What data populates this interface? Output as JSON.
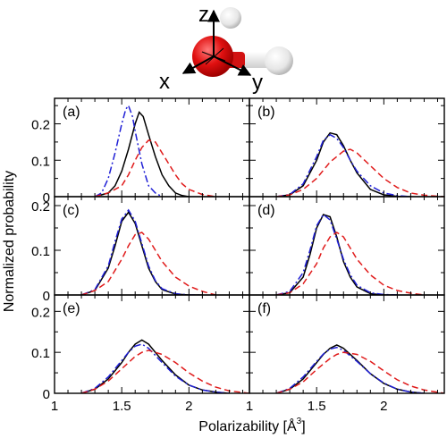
{
  "molecule": {
    "axis_labels": {
      "z": "z",
      "x": "x",
      "y": "y"
    }
  },
  "chart_data": {
    "type": "line",
    "xlabel": "Polarizability [Å³]",
    "xlabel_main": "Polarizability [Å",
    "xlabel_sup": "3",
    "xlabel_close": "]",
    "ylabel": "Normalized probability",
    "xlim": [
      1.0,
      2.45
    ],
    "x_ticks": [
      1,
      1.5,
      2
    ],
    "x_tick_labels": [
      "1",
      "1.5",
      "2"
    ],
    "x_minor_step": 0.1,
    "grid": false,
    "legend": "none",
    "series_styles": [
      {
        "color": "#000000",
        "dash": "solid"
      },
      {
        "color": "#1f1fd6",
        "dash": "dashdot"
      },
      {
        "color": "#e01b1b",
        "dash": "dashed"
      }
    ],
    "panels": [
      {
        "label": "(a)",
        "ylim": [
          0,
          0.27
        ],
        "y_ticks": [
          0,
          0.1,
          0.2
        ],
        "y_tick_labels": [
          "0",
          "0.1",
          "0.2"
        ],
        "series": [
          {
            "x": [
              1.3,
              1.4,
              1.45,
              1.5,
              1.55,
              1.6,
              1.63,
              1.66,
              1.7,
              1.75,
              1.8,
              1.85,
              1.9,
              1.95,
              2.0
            ],
            "y": [
              0.0,
              0.01,
              0.03,
              0.07,
              0.13,
              0.2,
              0.232,
              0.22,
              0.17,
              0.11,
              0.06,
              0.03,
              0.01,
              0.003,
              0.0
            ]
          },
          {
            "x": [
              1.3,
              1.35,
              1.4,
              1.45,
              1.5,
              1.53,
              1.55,
              1.58,
              1.6,
              1.65,
              1.7,
              1.75,
              1.8
            ],
            "y": [
              0.0,
              0.01,
              0.05,
              0.12,
              0.2,
              0.24,
              0.25,
              0.22,
              0.18,
              0.09,
              0.03,
              0.01,
              0.0
            ]
          },
          {
            "x": [
              1.3,
              1.4,
              1.5,
              1.55,
              1.6,
              1.65,
              1.7,
              1.75,
              1.8,
              1.85,
              1.9,
              1.95,
              2.0,
              2.1,
              2.2
            ],
            "y": [
              0.0,
              0.01,
              0.03,
              0.06,
              0.1,
              0.135,
              0.155,
              0.15,
              0.12,
              0.09,
              0.06,
              0.035,
              0.02,
              0.006,
              0.0
            ]
          }
        ]
      },
      {
        "label": "(b)",
        "ylim": [
          0,
          0.27
        ],
        "y_ticks": [
          0,
          0.1,
          0.2
        ],
        "y_tick_labels": [
          "0",
          "0.1",
          "0.2"
        ],
        "series": [
          {
            "x": [
              1.2,
              1.3,
              1.4,
              1.5,
              1.55,
              1.6,
              1.65,
              1.7,
              1.75,
              1.8,
              1.9,
              2.0,
              2.1,
              2.2
            ],
            "y": [
              0.0,
              0.005,
              0.03,
              0.1,
              0.15,
              0.175,
              0.17,
              0.14,
              0.1,
              0.065,
              0.02,
              0.005,
              0.001,
              0.0
            ]
          },
          {
            "x": [
              1.2,
              1.3,
              1.4,
              1.5,
              1.55,
              1.6,
              1.65,
              1.7,
              1.75,
              1.8,
              1.9,
              2.0,
              2.1,
              2.2
            ],
            "y": [
              0.0,
              0.006,
              0.035,
              0.11,
              0.155,
              0.17,
              0.16,
              0.135,
              0.1,
              0.07,
              0.03,
              0.01,
              0.003,
              0.0
            ]
          },
          {
            "x": [
              1.2,
              1.3,
              1.4,
              1.5,
              1.6,
              1.7,
              1.75,
              1.8,
              1.9,
              2.0,
              2.1,
              2.2,
              2.3,
              2.45
            ],
            "y": [
              0.0,
              0.005,
              0.02,
              0.05,
              0.095,
              0.125,
              0.13,
              0.12,
              0.085,
              0.05,
              0.025,
              0.01,
              0.004,
              0.0
            ]
          }
        ]
      },
      {
        "label": "(c)",
        "ylim": [
          0,
          0.22
        ],
        "y_ticks": [
          0,
          0.1,
          0.2
        ],
        "y_tick_labels": [
          "0",
          "0.1",
          "0.2"
        ],
        "series": [
          {
            "x": [
              1.2,
              1.3,
              1.4,
              1.45,
              1.5,
              1.55,
              1.6,
              1.65,
              1.7,
              1.75,
              1.8,
              1.9,
              2.0,
              2.1
            ],
            "y": [
              0.0,
              0.01,
              0.06,
              0.11,
              0.165,
              0.185,
              0.16,
              0.11,
              0.06,
              0.03,
              0.012,
              0.002,
              0.0,
              0.0
            ]
          },
          {
            "x": [
              1.2,
              1.3,
              1.4,
              1.45,
              1.5,
              1.55,
              1.6,
              1.65,
              1.7,
              1.75,
              1.8,
              1.9,
              2.0,
              2.1
            ],
            "y": [
              0.0,
              0.012,
              0.065,
              0.12,
              0.17,
              0.19,
              0.165,
              0.115,
              0.065,
              0.032,
              0.014,
              0.003,
              0.0,
              0.0
            ]
          },
          {
            "x": [
              1.2,
              1.3,
              1.4,
              1.5,
              1.55,
              1.6,
              1.65,
              1.7,
              1.75,
              1.8,
              1.9,
              2.0,
              2.1,
              2.2
            ],
            "y": [
              0.0,
              0.01,
              0.03,
              0.08,
              0.11,
              0.135,
              0.14,
              0.125,
              0.1,
              0.075,
              0.04,
              0.02,
              0.008,
              0.0
            ]
          }
        ]
      },
      {
        "label": "(d)",
        "ylim": [
          0,
          0.22
        ],
        "y_ticks": [
          0,
          0.1,
          0.2
        ],
        "y_tick_labels": [
          "0",
          "0.1",
          "0.2"
        ],
        "series": [
          {
            "x": [
              1.2,
              1.3,
              1.4,
              1.45,
              1.5,
              1.55,
              1.6,
              1.65,
              1.7,
              1.75,
              1.8,
              1.9,
              2.0,
              2.1
            ],
            "y": [
              0.0,
              0.005,
              0.04,
              0.09,
              0.15,
              0.18,
              0.175,
              0.13,
              0.075,
              0.04,
              0.018,
              0.003,
              0.0,
              0.0
            ]
          },
          {
            "x": [
              1.2,
              1.3,
              1.4,
              1.45,
              1.5,
              1.55,
              1.6,
              1.65,
              1.7,
              1.75,
              1.8,
              1.9,
              2.0,
              2.1
            ],
            "y": [
              0.0,
              0.008,
              0.05,
              0.1,
              0.155,
              0.18,
              0.168,
              0.125,
              0.08,
              0.045,
              0.022,
              0.005,
              0.001,
              0.0
            ]
          },
          {
            "x": [
              1.2,
              1.3,
              1.4,
              1.5,
              1.55,
              1.6,
              1.65,
              1.7,
              1.75,
              1.8,
              1.9,
              2.0,
              2.1,
              2.2,
              2.3
            ],
            "y": [
              0.0,
              0.005,
              0.025,
              0.07,
              0.105,
              0.13,
              0.14,
              0.13,
              0.105,
              0.08,
              0.045,
              0.022,
              0.01,
              0.004,
              0.0
            ]
          }
        ]
      },
      {
        "label": "(e)",
        "ylim": [
          0,
          0.24
        ],
        "y_ticks": [
          0,
          0.1,
          0.2
        ],
        "y_tick_labels": [
          "0",
          "0.1",
          "0.2"
        ],
        "series": [
          {
            "x": [
              1.2,
              1.3,
              1.4,
              1.5,
              1.55,
              1.6,
              1.65,
              1.7,
              1.8,
              1.9,
              2.0,
              2.1,
              2.2,
              2.3
            ],
            "y": [
              0.0,
              0.01,
              0.035,
              0.075,
              0.1,
              0.12,
              0.13,
              0.12,
              0.08,
              0.045,
              0.02,
              0.008,
              0.003,
              0.0
            ]
          },
          {
            "x": [
              1.2,
              1.3,
              1.4,
              1.5,
              1.55,
              1.6,
              1.65,
              1.7,
              1.8,
              1.9,
              2.0,
              2.1,
              2.2,
              2.3
            ],
            "y": [
              0.0,
              0.012,
              0.04,
              0.08,
              0.1,
              0.115,
              0.12,
              0.11,
              0.075,
              0.042,
              0.02,
              0.008,
              0.003,
              0.0
            ]
          },
          {
            "x": [
              1.2,
              1.3,
              1.4,
              1.5,
              1.6,
              1.65,
              1.7,
              1.8,
              1.9,
              2.0,
              2.1,
              2.2,
              2.3,
              2.45
            ],
            "y": [
              0.0,
              0.01,
              0.03,
              0.06,
              0.09,
              0.1,
              0.105,
              0.095,
              0.075,
              0.05,
              0.03,
              0.015,
              0.006,
              0.0
            ]
          }
        ]
      },
      {
        "label": "(f)",
        "ylim": [
          0,
          0.24
        ],
        "y_ticks": [
          0,
          0.1,
          0.2
        ],
        "y_tick_labels": [
          "0",
          "0.1",
          "0.2"
        ],
        "series": [
          {
            "x": [
              1.2,
              1.3,
              1.4,
              1.5,
              1.55,
              1.6,
              1.65,
              1.7,
              1.8,
              1.9,
              2.0,
              2.1,
              2.2,
              2.3
            ],
            "y": [
              0.0,
              0.01,
              0.035,
              0.075,
              0.095,
              0.11,
              0.118,
              0.11,
              0.08,
              0.048,
              0.024,
              0.01,
              0.003,
              0.0
            ]
          },
          {
            "x": [
              1.2,
              1.3,
              1.4,
              1.5,
              1.55,
              1.6,
              1.65,
              1.7,
              1.8,
              1.9,
              2.0,
              2.1,
              2.2,
              2.3
            ],
            "y": [
              0.0,
              0.012,
              0.04,
              0.078,
              0.096,
              0.108,
              0.112,
              0.105,
              0.078,
              0.048,
              0.025,
              0.01,
              0.003,
              0.0
            ]
          },
          {
            "x": [
              1.2,
              1.3,
              1.4,
              1.5,
              1.6,
              1.65,
              1.7,
              1.8,
              1.9,
              2.0,
              2.1,
              2.2,
              2.3,
              2.45
            ],
            "y": [
              0.0,
              0.01,
              0.028,
              0.058,
              0.085,
              0.095,
              0.1,
              0.095,
              0.078,
              0.055,
              0.033,
              0.018,
              0.008,
              0.0
            ]
          }
        ]
      }
    ]
  }
}
